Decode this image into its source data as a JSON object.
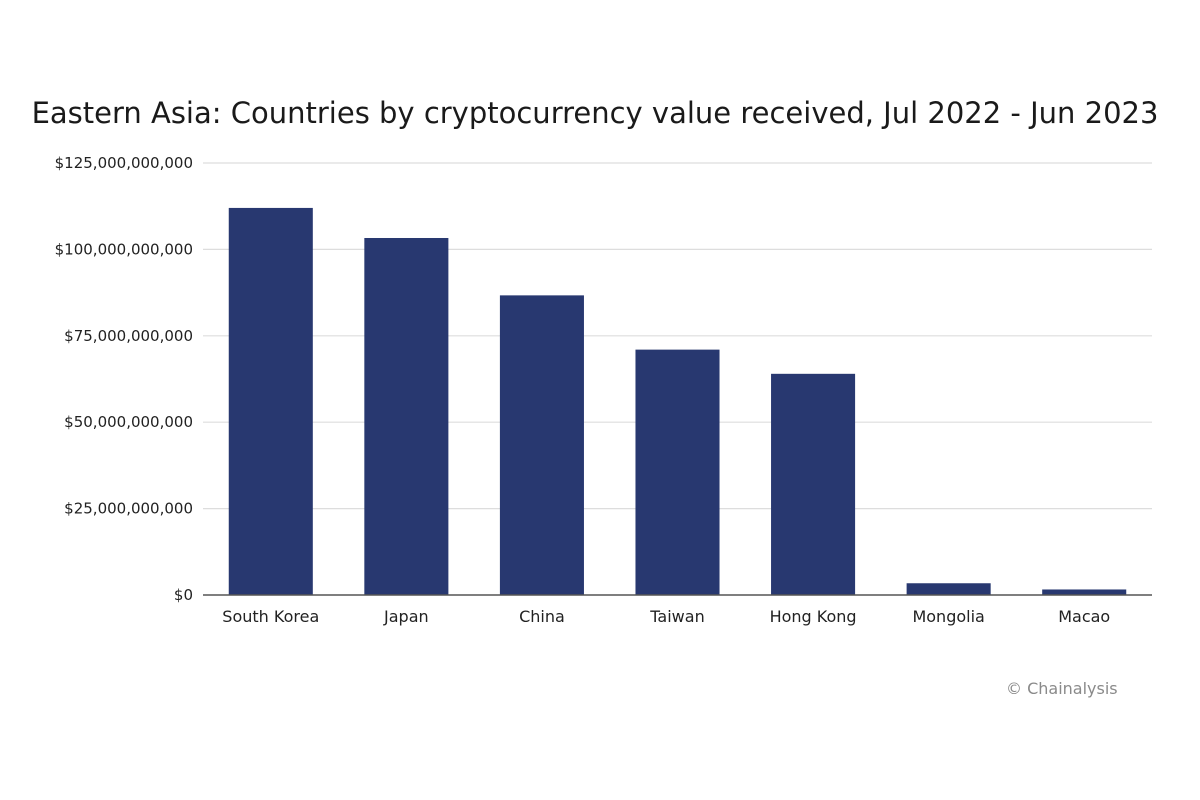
{
  "chart_data": {
    "type": "bar",
    "title": "Eastern Asia: Countries by cryptocurrency value received, Jul 2022 - Jun 2023",
    "xlabel": "",
    "ylabel": "",
    "categories": [
      "South Korea",
      "Japan",
      "China",
      "Taiwan",
      "Hong Kong",
      "Mongolia",
      "Macao"
    ],
    "values": [
      112000000000,
      103300000000,
      86700000000,
      71000000000,
      64000000000,
      3400000000,
      1600000000
    ],
    "ylim": [
      0,
      125000000000
    ],
    "yticks": [
      0,
      25000000000,
      50000000000,
      75000000000,
      100000000000,
      125000000000
    ],
    "ytick_labels": [
      "$0",
      "$25,000,000,000",
      "$50,000,000,000",
      "$75,000,000,000",
      "$100,000,000,000",
      "$125,000,000,000"
    ],
    "grid": true,
    "bar_color": "#283870",
    "grid_color": "#dddddd",
    "axis_color": "#555555"
  },
  "source_note": "© Chainalysis"
}
